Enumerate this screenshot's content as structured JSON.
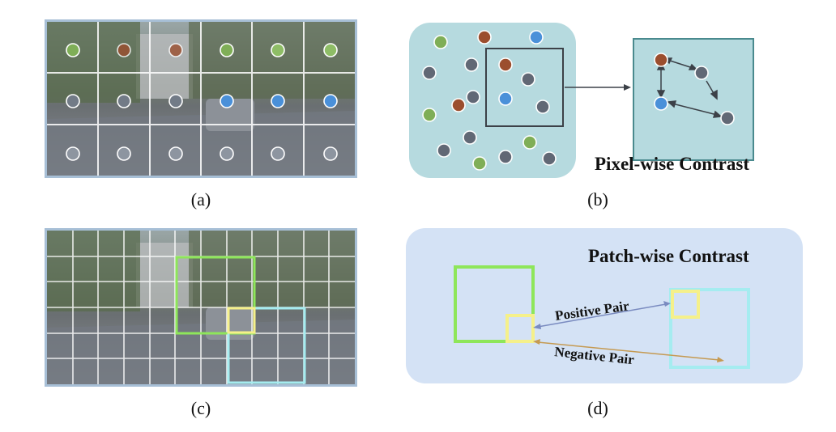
{
  "captions": {
    "a": "(a)",
    "b": "(b)",
    "c": "(c)",
    "d": "(d)"
  },
  "panel_b": {
    "title": "Pixel-wise Contrast"
  },
  "panel_d": {
    "title": "Patch-wise Contrast",
    "positive_label": "Positive Pair",
    "negative_label": "Negative Pair"
  },
  "colors": {
    "pixel_green": "#7fae57",
    "pixel_brown": "#9b4e2e",
    "pixel_blue": "#4a90d9",
    "pixel_gray": "#616875",
    "panel_b_bg": "#b6dadf",
    "panel_d_bg": "#d4e2f5",
    "patch_green": "#8ee65a",
    "patch_yellow": "#f5f08a",
    "patch_cyan": "#a5ecf0",
    "positive_arrow": "#7a8bc0",
    "negative_arrow": "#c59a52"
  }
}
